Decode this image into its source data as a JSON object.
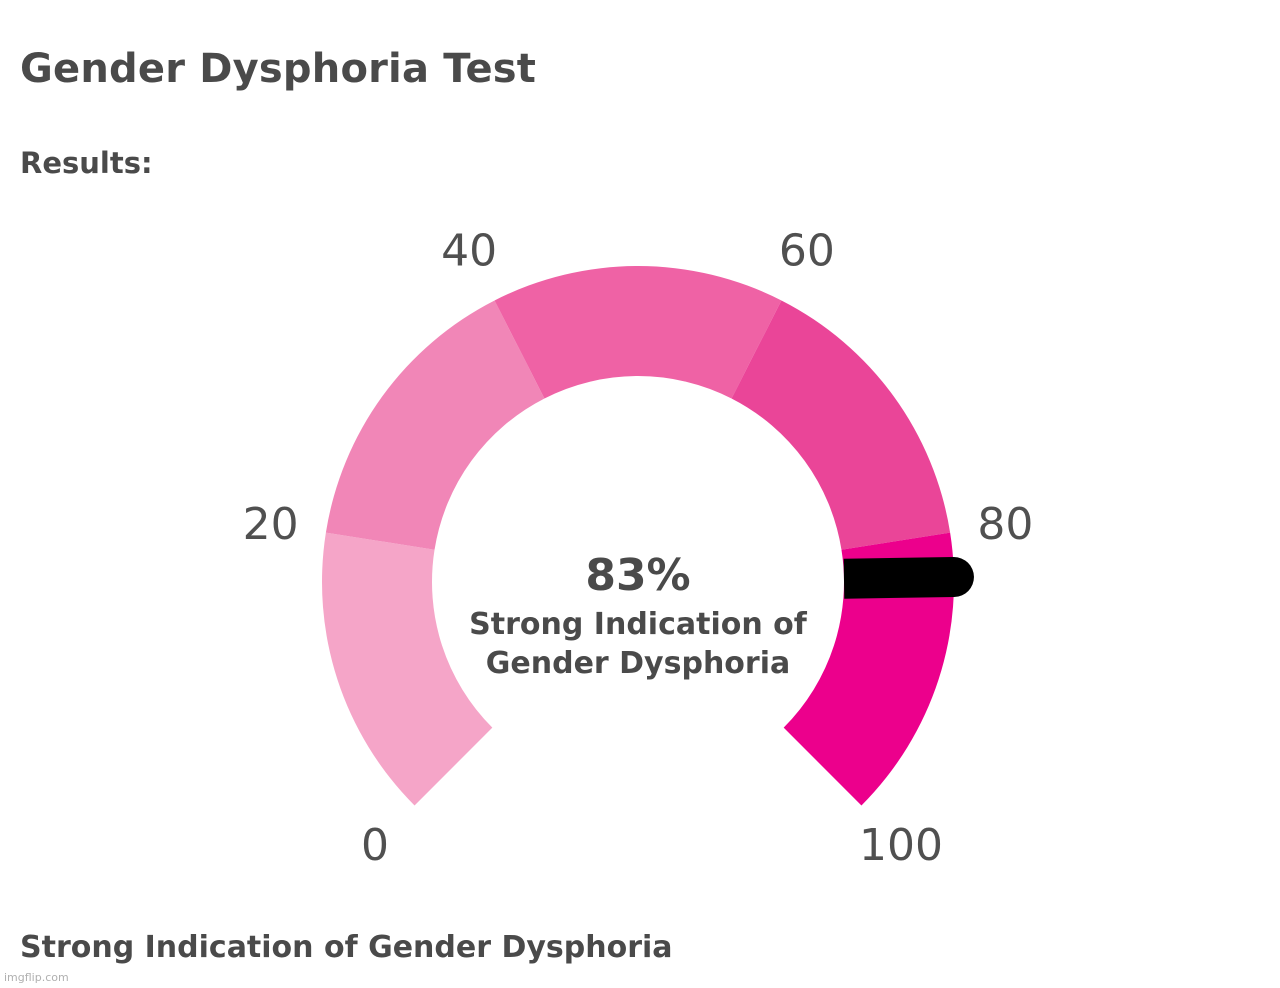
{
  "header": {
    "title": "Gender Dysphoria Test",
    "results_label": "Results:"
  },
  "chart_data": {
    "type": "gauge",
    "min": 0,
    "max": 100,
    "value": 83,
    "value_label": "83%",
    "caption_lines": [
      "Strong Indication of",
      "Gender Dysphoria"
    ],
    "ticks": [
      "0",
      "20",
      "40",
      "60",
      "80",
      "100"
    ],
    "bands": [
      {
        "from": 0,
        "to": 20,
        "color": "#f5a5c8"
      },
      {
        "from": 20,
        "to": 40,
        "color": "#f186b7"
      },
      {
        "from": 40,
        "to": 60,
        "color": "#ef62a5"
      },
      {
        "from": 60,
        "to": 80,
        "color": "#ea4598"
      },
      {
        "from": 80,
        "to": 100,
        "color": "#ec008c"
      }
    ],
    "needle_color": "#000000"
  },
  "footer": {
    "summary": "Strong Indication of Gender Dysphoria",
    "watermark": "imgflip.com"
  }
}
